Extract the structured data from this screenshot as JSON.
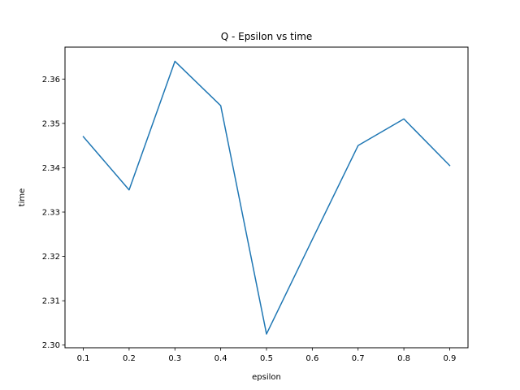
{
  "chart_data": {
    "type": "line",
    "title": "Q - Epsilon vs time",
    "xlabel": "epsilon",
    "ylabel": "time",
    "x": [
      0.1,
      0.2,
      0.3,
      0.4,
      0.5,
      0.6,
      0.7,
      0.8,
      0.9
    ],
    "series": [
      {
        "values": [
          2.347,
          2.335,
          2.364,
          2.354,
          2.3025,
          2.3238,
          2.345,
          2.351,
          2.3405
        ],
        "color": "#1f77b4"
      }
    ],
    "xlim": [
      0.06,
      0.94
    ],
    "ylim": [
      2.2994,
      2.3672
    ],
    "xticks": [
      "0.1",
      "0.2",
      "0.3",
      "0.4",
      "0.5",
      "0.6",
      "0.7",
      "0.8",
      "0.9"
    ],
    "yticks": [
      "2.30",
      "2.31",
      "2.32",
      "2.33",
      "2.34",
      "2.35",
      "2.36"
    ],
    "grid": false,
    "legend": "none"
  }
}
